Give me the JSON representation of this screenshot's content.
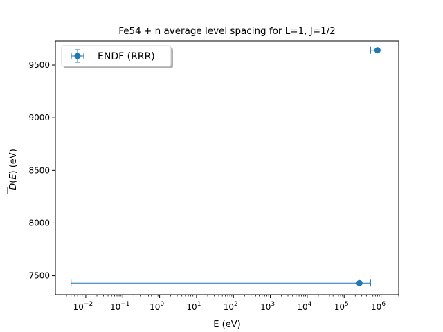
{
  "chart_data": {
    "type": "scatter",
    "title": "Fe54 + n average level spacing for L=1, J=1/2",
    "xlabel": "E (eV)",
    "ylabel": "D(E) (eV)",
    "xscale": "log",
    "xlim": [
      0.0015,
      3000000
    ],
    "ylim": [
      7320,
      9730
    ],
    "x_ticks": [
      {
        "value": 0.01,
        "label": "10",
        "exp": "−2"
      },
      {
        "value": 0.1,
        "label": "10",
        "exp": "−1"
      },
      {
        "value": 1,
        "label": "10",
        "exp": "0"
      },
      {
        "value": 10,
        "label": "10",
        "exp": "1"
      },
      {
        "value": 100,
        "label": "10",
        "exp": "2"
      },
      {
        "value": 1000,
        "label": "10",
        "exp": "3"
      },
      {
        "value": 10000,
        "label": "10",
        "exp": "4"
      },
      {
        "value": 100000,
        "label": "10",
        "exp": "5"
      },
      {
        "value": 1000000,
        "label": "10",
        "exp": "6"
      }
    ],
    "y_ticks": [
      {
        "value": 7500,
        "label": "7500"
      },
      {
        "value": 8000,
        "label": "8000"
      },
      {
        "value": 8500,
        "label": "8500"
      },
      {
        "value": 9000,
        "label": "9000"
      },
      {
        "value": 9500,
        "label": "9500"
      }
    ],
    "grid": false,
    "legend": {
      "placement": "top-left",
      "entries": [
        "ENDF (RRR)"
      ]
    },
    "series": [
      {
        "name": "ENDF (RRR)",
        "color": "#1f77b4",
        "points": [
          {
            "x": 260000,
            "y": 7430,
            "x_err_low": 0.004,
            "x_err_high": 520000
          },
          {
            "x": 800000,
            "y": 9640,
            "x_err_low": 520000,
            "x_err_high": 1000000
          }
        ]
      }
    ]
  }
}
